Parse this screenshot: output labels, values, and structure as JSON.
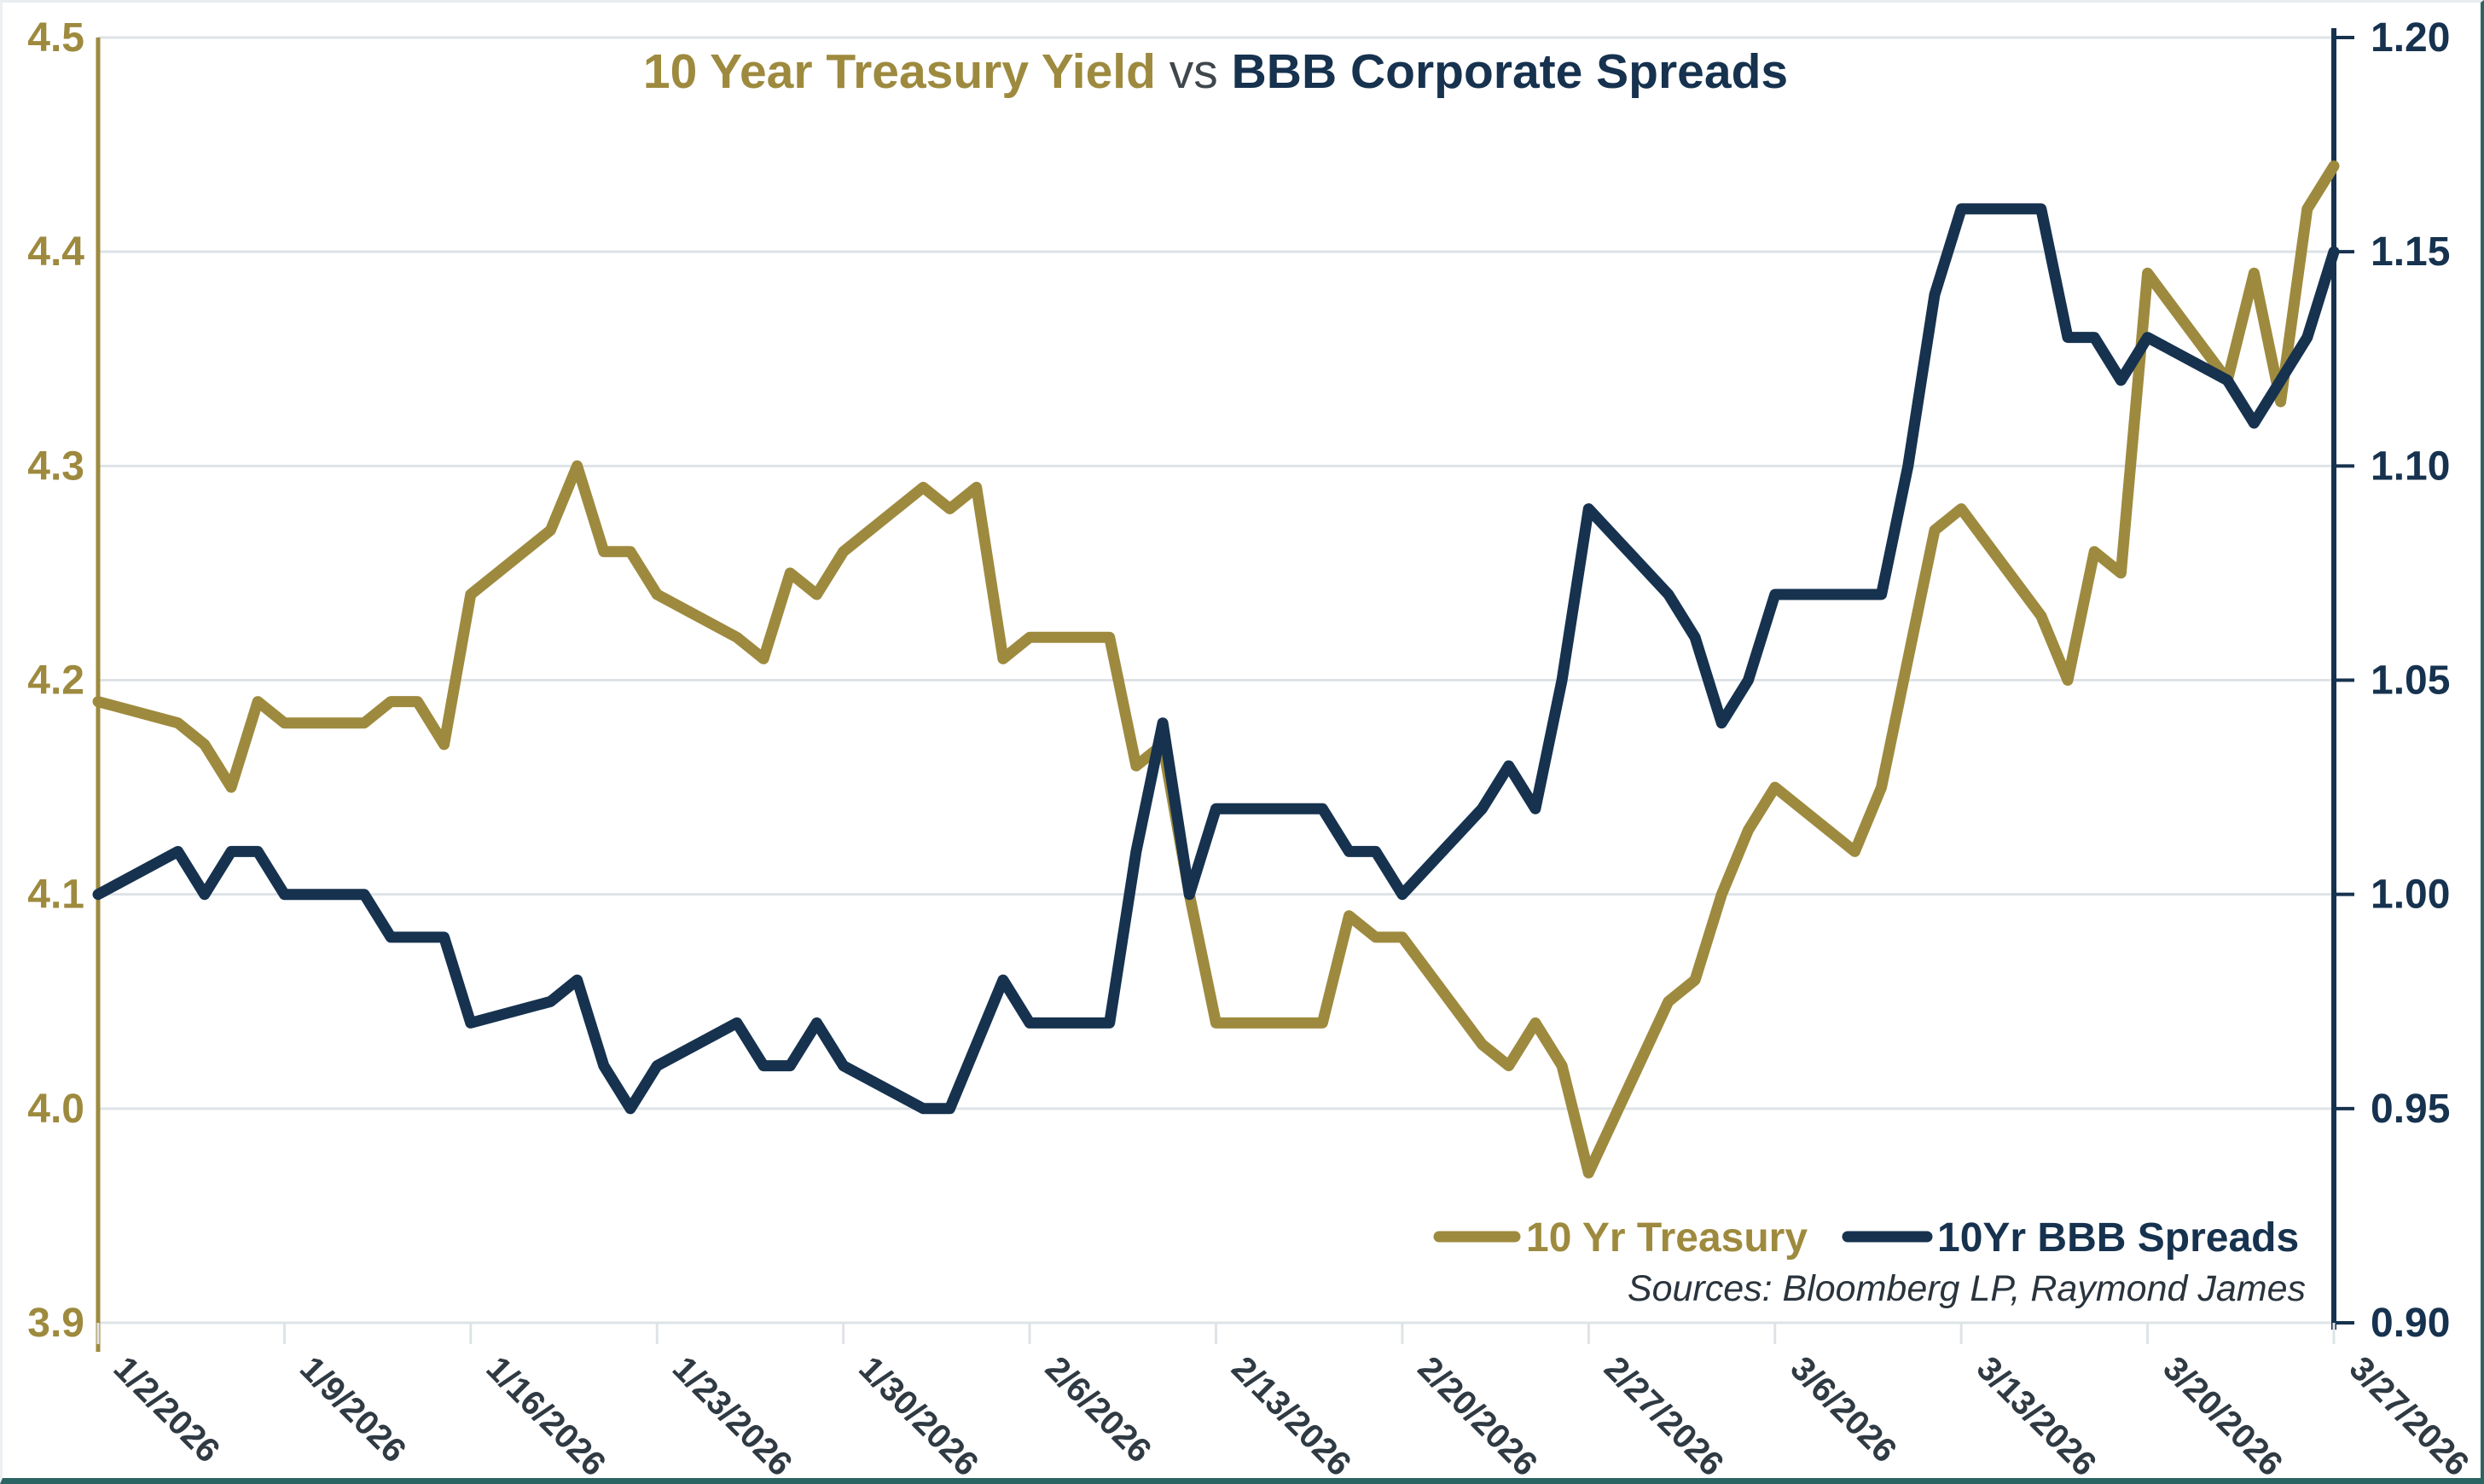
{
  "title": {
    "part1": "10 Year Treasury Yield",
    "part2": " vs ",
    "part3": "BBB Corporate Spreads"
  },
  "legend": [
    {
      "label": "10 Yr Treasury",
      "color": "#9E8A3E"
    },
    {
      "label": "10Yr BBB Spreads",
      "color": "#16324F"
    }
  ],
  "source_note": "Sources: Bloomberg LP, Raymond James",
  "colors": {
    "gold": "#9E8A3E",
    "navy": "#16324F",
    "gridline": "#DEE3E7",
    "x_label": "#2F3A43",
    "vs_text": "#3F474D",
    "source_text": "#2A343D",
    "background": "#FFFFFF"
  },
  "chart_data": {
    "type": "line",
    "title": "10 Year Treasury Yield vs BBB Corporate Spreads",
    "start_date": "1/2/2026",
    "end_date": "3/27/2026",
    "x_tick_labels": [
      "1/2/2026",
      "1/9/2026",
      "1/16/2026",
      "1/23/2026",
      "1/30/2026",
      "2/6/2026",
      "2/13/2026",
      "2/20/2026",
      "2/27/2026",
      "3/6/2026",
      "3/13/2026",
      "3/20/2026",
      "3/27/2026"
    ],
    "left_axis": {
      "min": 3.9,
      "max": 4.5,
      "tick_labels": [
        "4.5",
        "4.4",
        "4.3",
        "4.2",
        "4.1",
        "4.0",
        "3.9"
      ]
    },
    "right_axis": {
      "min": 0.9,
      "max": 1.2,
      "tick_labels": [
        "1.20",
        "1.15",
        "1.10",
        "1.05",
        "1.00",
        "0.95",
        "0.90"
      ]
    },
    "grid": true,
    "legend_position": "bottom-right",
    "dates": [
      "1/2/2026",
      "1/5/2026",
      "1/6/2026",
      "1/7/2026",
      "1/8/2026",
      "1/9/2026",
      "1/12/2026",
      "1/13/2026",
      "1/14/2026",
      "1/15/2026",
      "1/16/2026",
      "1/19/2026",
      "1/20/2026",
      "1/21/2026",
      "1/22/2026",
      "1/23/2026",
      "1/26/2026",
      "1/27/2026",
      "1/28/2026",
      "1/29/2026",
      "1/30/2026",
      "2/2/2026",
      "2/3/2026",
      "2/4/2026",
      "2/5/2026",
      "2/6/2026",
      "2/9/2026",
      "2/10/2026",
      "2/11/2026",
      "2/12/2026",
      "2/13/2026",
      "2/16/2026",
      "2/17/2026",
      "2/18/2026",
      "2/19/2026",
      "2/20/2026",
      "2/23/2026",
      "2/24/2026",
      "2/25/2026",
      "2/26/2026",
      "2/27/2026",
      "3/2/2026",
      "3/3/2026",
      "3/4/2026",
      "3/5/2026",
      "3/6/2026",
      "3/9/2026",
      "3/10/2026",
      "3/11/2026",
      "3/12/2026",
      "3/13/2026",
      "3/16/2026",
      "3/17/2026",
      "3/18/2026",
      "3/19/2026",
      "3/20/2026",
      "3/23/2026",
      "3/24/2026",
      "3/25/2026",
      "3/26/2026",
      "3/27/2026"
    ],
    "series": [
      {
        "name": "10 Yr Treasury",
        "axis": "left",
        "color": "#9E8A3E",
        "values": [
          4.19,
          4.18,
          4.17,
          4.15,
          4.19,
          4.18,
          4.18,
          4.19,
          4.19,
          4.17,
          4.24,
          4.27,
          4.3,
          4.26,
          4.26,
          4.24,
          4.22,
          4.21,
          4.25,
          4.24,
          4.26,
          4.29,
          4.28,
          4.29,
          4.21,
          4.22,
          4.22,
          4.16,
          4.17,
          4.1,
          4.04,
          4.04,
          4.04,
          4.09,
          4.08,
          4.08,
          4.03,
          4.02,
          4.04,
          4.02,
          3.97,
          4.05,
          4.06,
          4.1,
          4.13,
          4.15,
          4.12,
          4.15,
          4.21,
          4.27,
          4.28,
          4.23,
          4.2,
          4.26,
          4.25,
          4.39,
          4.34,
          4.39,
          4.33,
          4.42,
          4.44
        ]
      },
      {
        "name": "10Yr BBB Spreads",
        "axis": "right",
        "color": "#16324F",
        "values": [
          1.0,
          1.01,
          1.0,
          1.01,
          1.01,
          1.0,
          1.0,
          0.99,
          0.99,
          0.99,
          0.97,
          0.975,
          0.98,
          0.96,
          0.95,
          0.96,
          0.97,
          0.96,
          0.96,
          0.97,
          0.96,
          0.95,
          0.95,
          0.965,
          0.98,
          0.97,
          0.97,
          1.01,
          1.04,
          1.0,
          1.02,
          1.02,
          1.02,
          1.01,
          1.01,
          1.0,
          1.02,
          1.03,
          1.02,
          1.05,
          1.09,
          1.07,
          1.06,
          1.04,
          1.05,
          1.07,
          1.07,
          1.07,
          1.1,
          1.14,
          1.16,
          1.16,
          1.13,
          1.13,
          1.12,
          1.13,
          1.12,
          1.11,
          1.12,
          1.13,
          1.15
        ]
      }
    ]
  }
}
